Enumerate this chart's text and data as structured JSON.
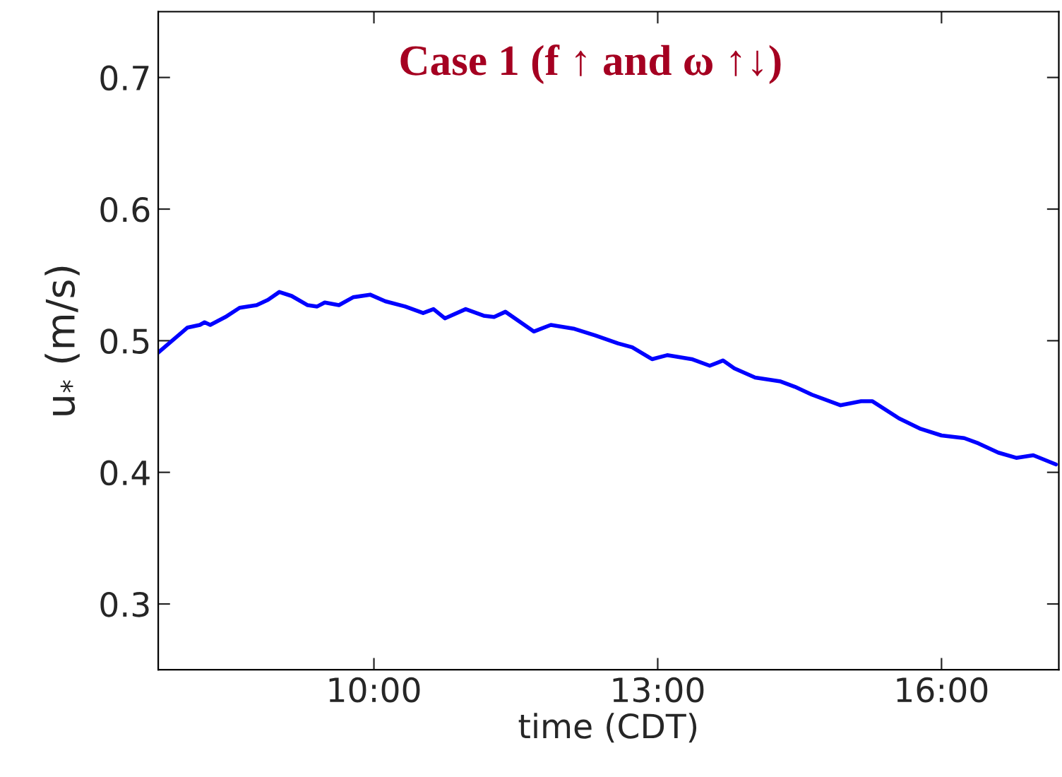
{
  "chart_data": {
    "type": "line",
    "title": "Case 1 (f ↑ and ω ↑↓)",
    "xlabel": "time (CDT)",
    "ylabel": "u$_{*}$ (m/s)",
    "x": [
      7.72,
      8.03,
      8.16,
      8.21,
      8.27,
      8.43,
      8.58,
      8.76,
      8.88,
      9.0,
      9.13,
      9.3,
      9.4,
      9.48,
      9.63,
      9.78,
      9.96,
      10.12,
      10.33,
      10.52,
      10.63,
      10.75,
      10.97,
      11.16,
      11.27,
      11.39,
      11.69,
      11.87,
      12.12,
      12.34,
      12.58,
      12.73,
      12.94,
      13.1,
      13.36,
      13.55,
      13.69,
      13.81,
      14.03,
      14.3,
      14.45,
      14.63,
      14.93,
      15.15,
      15.27,
      15.55,
      15.78,
      16.0,
      16.24,
      16.39,
      16.6,
      16.79,
      16.97,
      17.21
    ],
    "series": [
      {
        "color": "#0000ff",
        "values": [
          0.491,
          0.51,
          0.512,
          0.514,
          0.512,
          0.518,
          0.525,
          0.527,
          0.531,
          0.537,
          0.534,
          0.527,
          0.526,
          0.529,
          0.527,
          0.533,
          0.535,
          0.53,
          0.526,
          0.521,
          0.524,
          0.517,
          0.524,
          0.519,
          0.518,
          0.522,
          0.507,
          0.512,
          0.509,
          0.504,
          0.498,
          0.495,
          0.486,
          0.489,
          0.486,
          0.481,
          0.485,
          0.479,
          0.472,
          0.469,
          0.465,
          0.459,
          0.451,
          0.454,
          0.454,
          0.441,
          0.433,
          0.428,
          0.426,
          0.422,
          0.415,
          0.411,
          0.413,
          0.406
        ]
      }
    ],
    "xlim": [
      7.72,
      17.24
    ],
    "xticks": [
      {
        "value": 10,
        "label": "10:00"
      },
      {
        "value": 13,
        "label": "13:00"
      },
      {
        "value": 16,
        "label": "16:00"
      }
    ],
    "ylim": [
      0.25,
      0.75
    ],
    "yticks": [
      0.3,
      0.4,
      0.5,
      0.6,
      0.7
    ],
    "grid": false,
    "marker": "none",
    "line_style": "solid"
  }
}
